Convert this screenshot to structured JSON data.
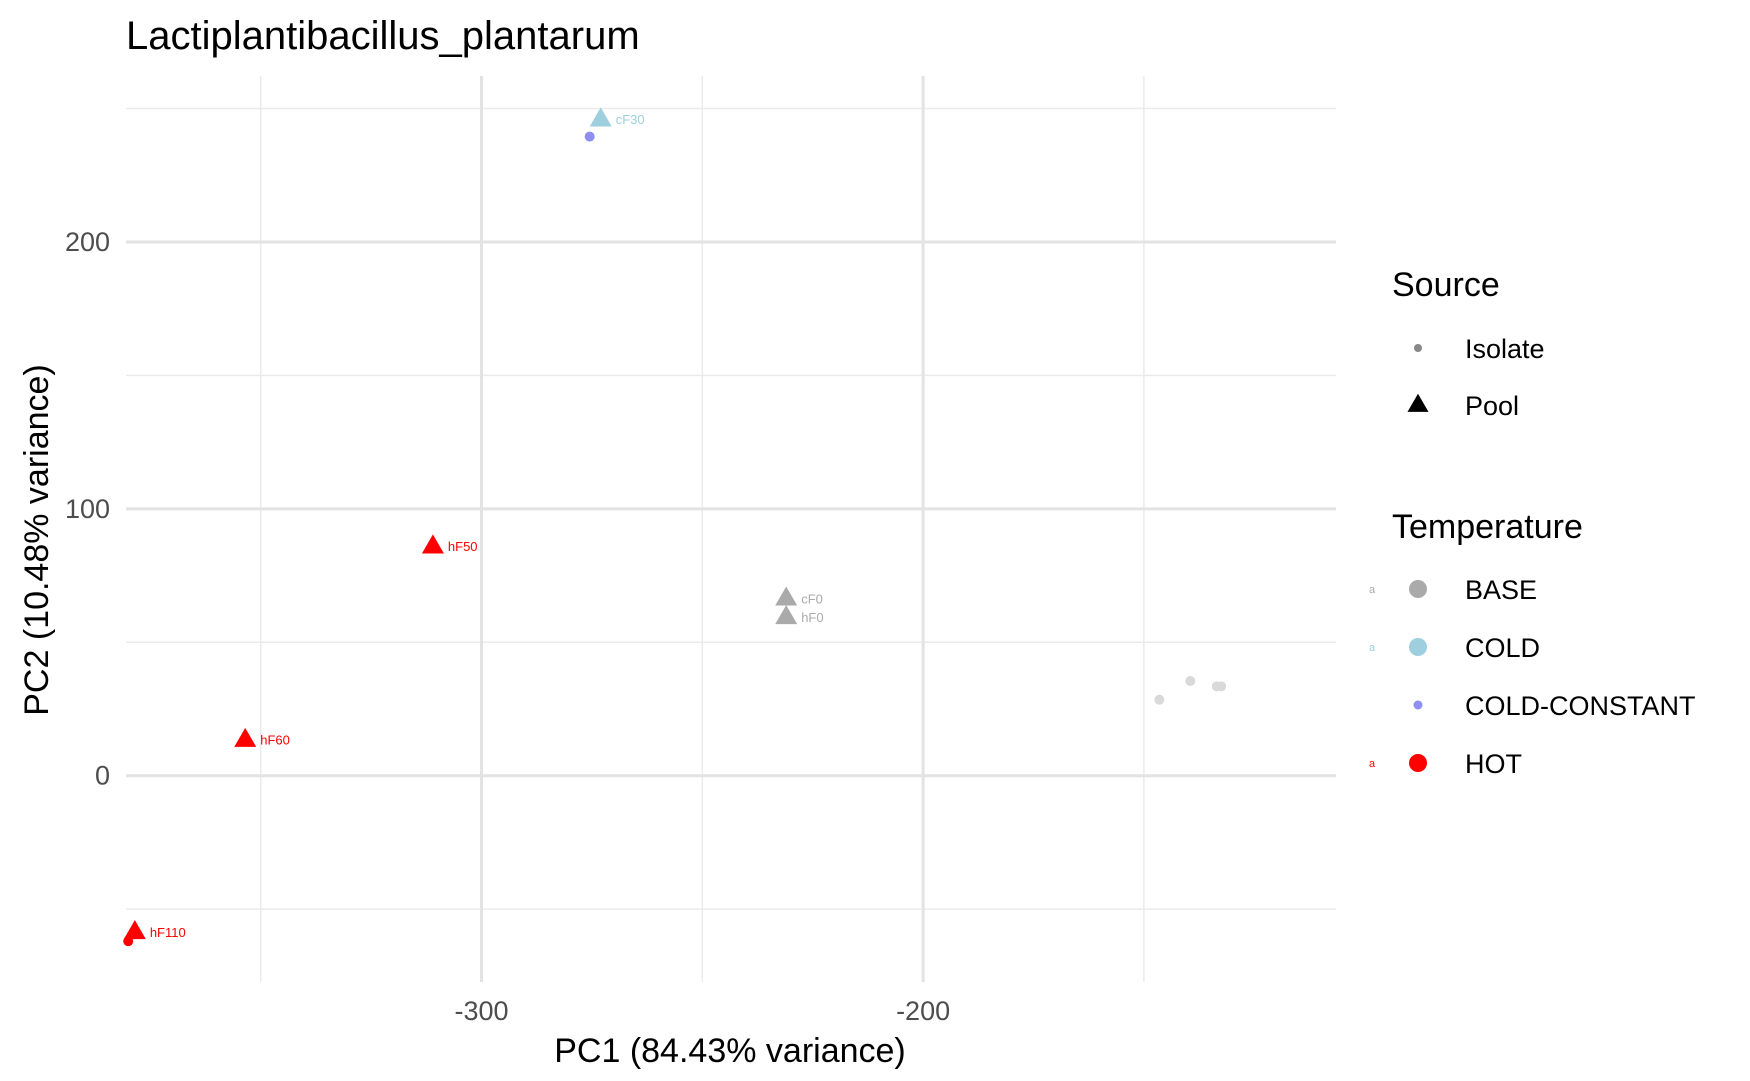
{
  "chart_data": {
    "type": "scatter",
    "title": "Lactiplantibacillus_plantarum",
    "xlabel": "PC1 (84.43% variance)",
    "ylabel": "PC2 (10.48% variance)",
    "xlim": [
      -380.5,
      -106.5
    ],
    "ylim": [
      -77.3,
      262.2
    ],
    "x_ticks": [
      -300,
      -200
    ],
    "y_ticks": [
      0,
      100,
      200
    ],
    "x_ticks_minor": [
      -350,
      -250,
      -150
    ],
    "y_ticks_minor": [
      -50,
      50,
      150,
      250
    ],
    "grid": true,
    "legend_position": "right",
    "colors": {
      "BASE": "#aaaaaa",
      "COLD": "#9ecfdf",
      "COLD-CONSTANT": "#8f8ff2",
      "HOT": "#ff0000",
      "BASE_isolate": "#d9d9d9"
    },
    "points": [
      {
        "x": -273,
        "y": 246,
        "source": "Pool",
        "temperature": "COLD",
        "label": "cF30"
      },
      {
        "x": -275.5,
        "y": 239.5,
        "source": "Isolate",
        "temperature": "COLD-CONSTANT",
        "label": ""
      },
      {
        "x": -311,
        "y": 86,
        "source": "Pool",
        "temperature": "HOT",
        "label": "hF50"
      },
      {
        "x": -353.5,
        "y": 13.5,
        "source": "Pool",
        "temperature": "HOT",
        "label": "hF60"
      },
      {
        "x": -378.5,
        "y": -58.5,
        "source": "Pool",
        "temperature": "HOT",
        "label": "hF110"
      },
      {
        "x": -380,
        "y": -62,
        "source": "Isolate",
        "temperature": "HOT",
        "label": ""
      },
      {
        "x": -231,
        "y": 66.5,
        "source": "Pool",
        "temperature": "BASE",
        "label": "cF0"
      },
      {
        "x": -231,
        "y": 59.5,
        "source": "Pool",
        "temperature": "BASE",
        "label": "hF0"
      },
      {
        "x": -146.5,
        "y": 28.5,
        "source": "Isolate",
        "temperature": "BASE",
        "label": ""
      },
      {
        "x": -139.5,
        "y": 35.5,
        "source": "Isolate",
        "temperature": "BASE",
        "label": ""
      },
      {
        "x": -133.5,
        "y": 33.5,
        "source": "Isolate",
        "temperature": "BASE",
        "label": ""
      },
      {
        "x": -132.5,
        "y": 33.5,
        "source": "Isolate",
        "temperature": "BASE",
        "label": ""
      }
    ],
    "legend": {
      "source_title": "Source",
      "source_items": [
        {
          "label": "Isolate",
          "shape": "dot"
        },
        {
          "label": "Pool",
          "shape": "triangle"
        }
      ],
      "temperature_title": "Temperature",
      "temperature_items": [
        {
          "label": "BASE",
          "color": "#aaaaaa",
          "key_letter": "a",
          "size": "large"
        },
        {
          "label": "COLD",
          "color": "#9ecfdf",
          "key_letter": "a",
          "size": "large"
        },
        {
          "label": "COLD-CONSTANT",
          "color": "#8f8ff2",
          "key_letter": "",
          "size": "small"
        },
        {
          "label": "HOT",
          "color": "#ff0000",
          "key_letter": "a",
          "size": "large"
        }
      ]
    }
  }
}
